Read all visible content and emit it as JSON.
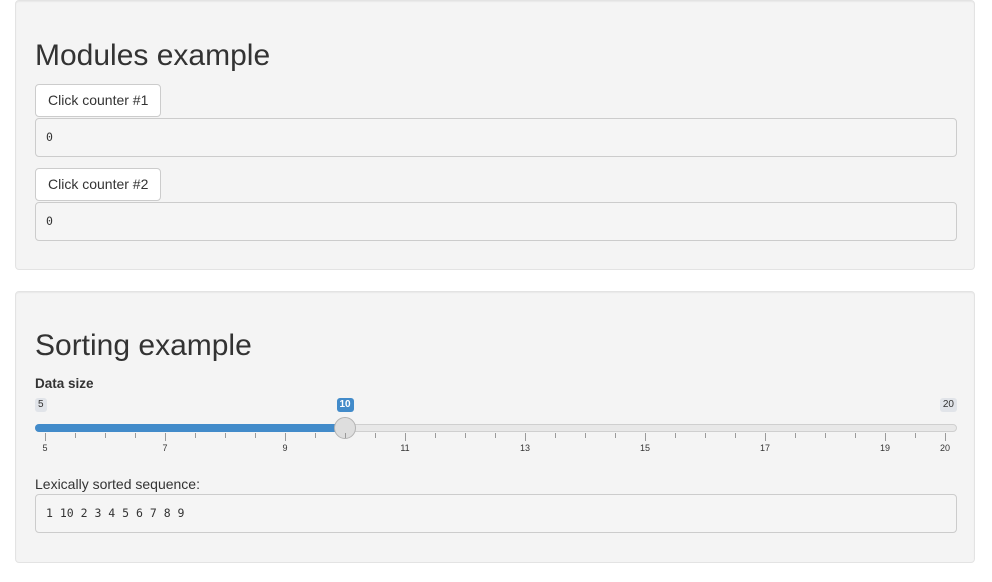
{
  "modules": {
    "title": "Modules example",
    "counters": [
      {
        "button_label": "Click counter #1",
        "output": "0"
      },
      {
        "button_label": "Click counter #2",
        "output": "0"
      }
    ]
  },
  "sorting": {
    "title": "Sorting example",
    "slider": {
      "label": "Data size",
      "min": 5,
      "max": 20,
      "value": 10,
      "min_label": "5",
      "max_label": "20",
      "value_label": "10",
      "tick_labels": [
        "5",
        "7",
        "9",
        "11",
        "13",
        "15",
        "17",
        "19",
        "20"
      ],
      "accent_color": "#428bca"
    },
    "output_label": "Lexically sorted sequence:",
    "output": "1 10 2 3 4 5 6 7 8 9"
  }
}
